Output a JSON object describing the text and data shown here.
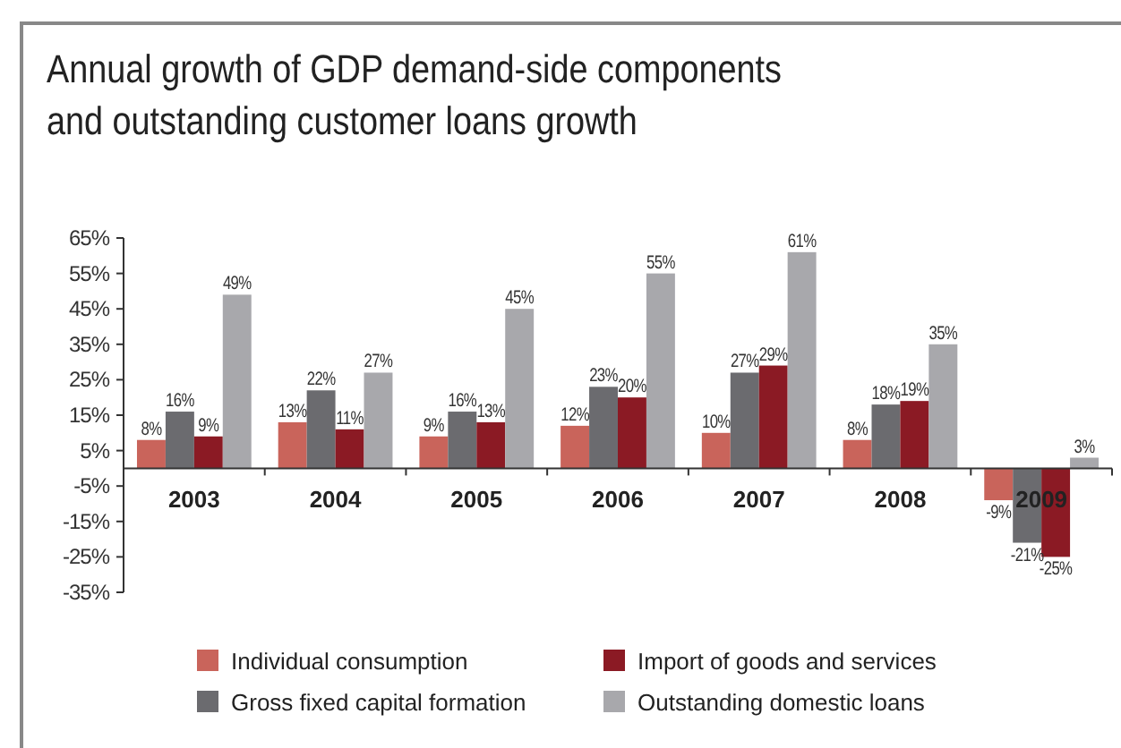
{
  "chart_data": {
    "type": "bar",
    "title": "Annual growth of GDP demand-side components\nand outstanding customer loans growth",
    "categories": [
      "2003",
      "2004",
      "2005",
      "2006",
      "2007",
      "2008",
      "2009"
    ],
    "series": [
      {
        "name": "Individual consumption",
        "color": "#c9645b",
        "values": [
          8,
          13,
          9,
          12,
          10,
          8,
          -9
        ],
        "value_labels": [
          "8%",
          "13%",
          "9%",
          "12%",
          "10%",
          "8%",
          "-9%"
        ]
      },
      {
        "name": "Gross fixed capital formation",
        "color": "#6b6b6f",
        "values": [
          16,
          22,
          16,
          23,
          27,
          18,
          -21
        ],
        "value_labels": [
          "16%",
          "22%",
          "16%",
          "23%",
          "27%",
          "18%",
          "-21%"
        ]
      },
      {
        "name": "Import of goods and services",
        "color": "#8b1a24",
        "values": [
          9,
          11,
          13,
          20,
          29,
          19,
          -25
        ],
        "value_labels": [
          "9%",
          "11%",
          "13%",
          "20%",
          "29%",
          "19%",
          "-25%"
        ]
      },
      {
        "name": "Outstanding domestic loans",
        "color": "#a8a8ac",
        "values": [
          49,
          27,
          45,
          55,
          61,
          35,
          3
        ],
        "value_labels": [
          "49%",
          "27%",
          "45%",
          "55%",
          "61%",
          "35%",
          "3%"
        ]
      }
    ],
    "ylim": [
      -35,
      65
    ],
    "yticks": [
      {
        "value": -35,
        "label": "-35%"
      },
      {
        "value": -25,
        "label": "-25%"
      },
      {
        "value": -15,
        "label": "-15%"
      },
      {
        "value": -5,
        "label": "-5%"
      },
      {
        "value": 5,
        "label": "5%"
      },
      {
        "value": 15,
        "label": "15%"
      },
      {
        "value": 25,
        "label": "25%"
      },
      {
        "value": 35,
        "label": "35%"
      },
      {
        "value": 45,
        "label": "45%"
      },
      {
        "value": 55,
        "label": "55%"
      },
      {
        "value": 65,
        "label": "65%"
      }
    ],
    "legend": "bottom"
  }
}
